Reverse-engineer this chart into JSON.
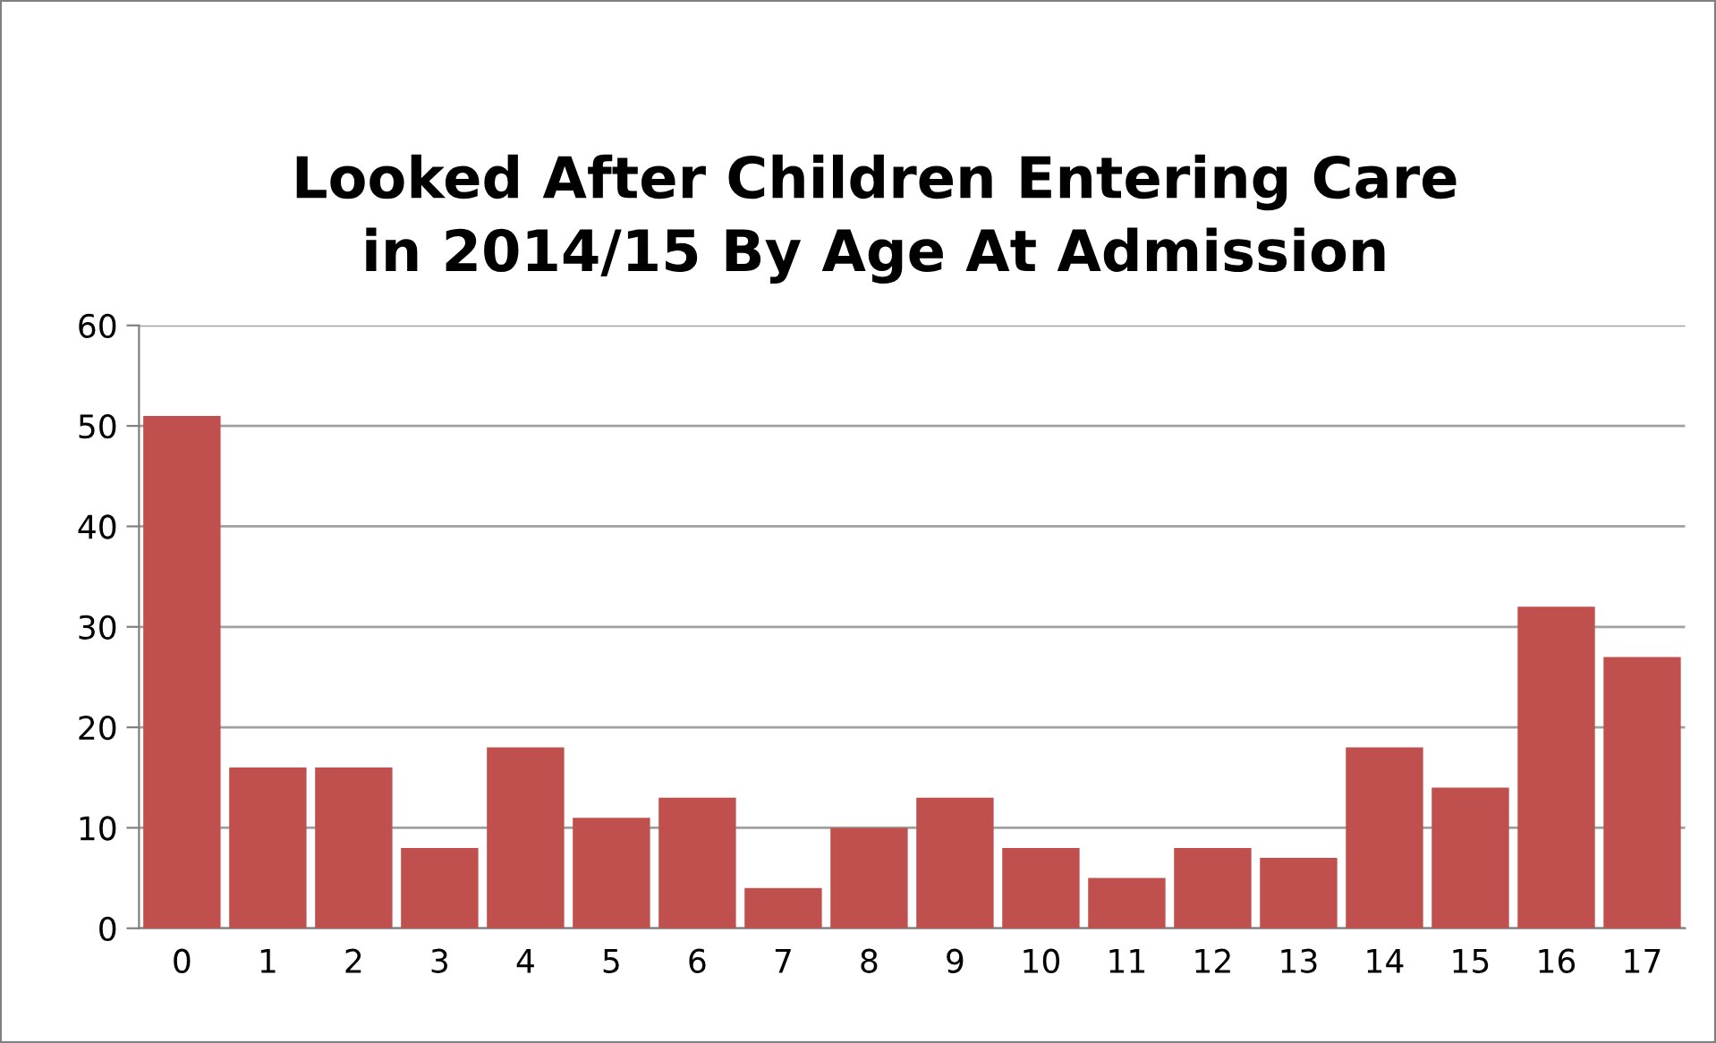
{
  "chart_data": {
    "type": "bar",
    "title": "Looked After Children Entering Care\nin 2014/15 By Age At Admission",
    "categories": [
      "0",
      "1",
      "2",
      "3",
      "4",
      "5",
      "6",
      "7",
      "8",
      "9",
      "10",
      "11",
      "12",
      "13",
      "14",
      "15",
      "16",
      "17"
    ],
    "values": [
      51,
      16,
      16,
      8,
      18,
      11,
      13,
      4,
      10,
      13,
      8,
      5,
      8,
      7,
      18,
      14,
      32,
      27
    ],
    "color": "#c0504d",
    "ylim": [
      0,
      60
    ],
    "yticks": [
      0,
      10,
      20,
      30,
      40,
      50,
      60
    ],
    "grid": "y",
    "legend": false
  }
}
